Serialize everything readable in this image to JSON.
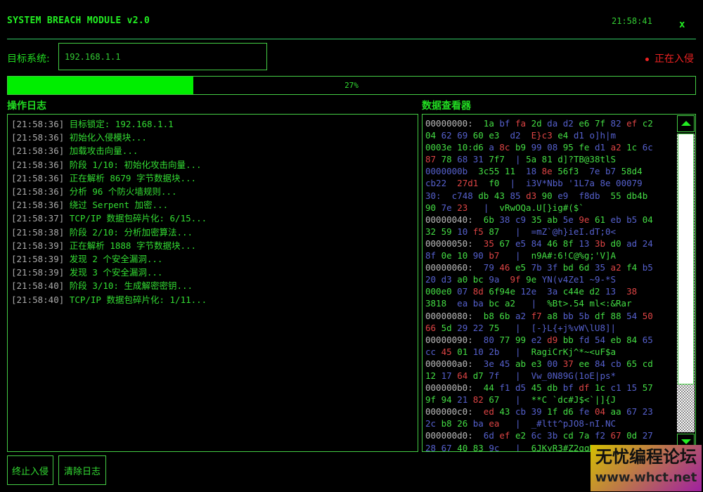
{
  "header": {
    "title": "SYSTEM BREACH MODULE v2.0",
    "clock": "21:58:41",
    "close_label": "x"
  },
  "target": {
    "label": "目标系统:",
    "value": "192.168.1.1"
  },
  "status": {
    "text": "正在入侵",
    "color": "#ee2222"
  },
  "progress": {
    "percent": 27,
    "label": "27%"
  },
  "log": {
    "title": "操作日志",
    "entries": [
      {
        "time": "[21:58:36]",
        "message": "目标锁定: 192.168.1.1"
      },
      {
        "time": "[21:58:36]",
        "message": "初始化入侵模块..."
      },
      {
        "time": "[21:58:36]",
        "message": "加载攻击向量..."
      },
      {
        "time": "[21:58:36]",
        "message": "阶段 1/10: 初始化攻击向量..."
      },
      {
        "time": "[21:58:36]",
        "message": "正在解析 8679 字节数据块..."
      },
      {
        "time": "[21:58:36]",
        "message": "分析 96 个防火墙规则..."
      },
      {
        "time": "[21:58:36]",
        "message": "绕过 Serpent 加密..."
      },
      {
        "time": "[21:58:37]",
        "message": "TCP/IP 数据包碎片化: 6/15..."
      },
      {
        "time": "[21:58:38]",
        "message": "阶段 2/10: 分析加密算法..."
      },
      {
        "time": "[21:58:39]",
        "message": "正在解析 1888 字节数据块..."
      },
      {
        "time": "[21:58:39]",
        "message": "发现 2 个安全漏洞..."
      },
      {
        "time": "[21:58:39]",
        "message": "发现 3 个安全漏洞..."
      },
      {
        "time": "[21:58:40]",
        "message": "阶段 3/10: 生成解密密钥..."
      },
      {
        "time": "[21:58:40]",
        "message": "TCP/IP 数据包碎片化: 1/11..."
      }
    ]
  },
  "hex_viewer": {
    "title": "数据查看器",
    "lines": [
      "00000000:  1a bf fa 2d da d2 e6 7f 82 ef c2",
      "04 62 69 60 e3  d2  E}c3 e4 d1 o]h|m",
      "0003e 10:d6 a 8c b9 99 08 95 fe d1 a2 1c 6c",
      "87 78 68 31 7f7  | 5a 81 d]?TB@38tlS",
      "0000000b  3c55 11  18 8e 56f3  7e b7 58d4",
      "cb22  27d1  f0  |  i3V*Nbb '1L7a 8e 00079",
      "30:  c748 db 43 85 d3 90 e9  f8db  55 db4b",
      "90 7e 23   |  vRwOQa.U[}ig#($`",
      "00000040:  6b 38 c9 35 ab 5e 9e 61 eb b5 04",
      "32 59 10 f5 87   |  =mZ`@h}ieI.dT;0<",
      "00000050:  35 67 e5 84 46 8f 13 3b d0 ad 24",
      "8f 0e 10 90 b7   |  n9A#:6!C@%g;'V]A",
      "00000060:  79 46 e5 7b 3f bd 6d 35 a2 f4 b5",
      "20 d3 a0 bc 9a  9f 9e YN(v4Ze1 ~9-*S",
      "000e0 07 8d 6f94e 12e  3a c44e d2 13  38",
      "3818  ea ba bc a2   |  %Bt>.54 ml<:&Rar",
      "00000080:  b8 6b a2 f7 a8 bb 5b df 88 54 50",
      "66 5d 29 22 75   |  [-}L{+j%vW\\lU8]|",
      "00000090:  80 77 99 e2 d9 bb fd 54 eb 84 65",
      "cc 45 01 10 2b   |  RagiCrKj^*~<uF$a",
      "000000a0:  3e 45 ab e3 00 37 ee 84 cb 65 cd",
      "12 17 64 d7 7f   |  Vw_0N89G(1oE|ps*",
      "000000b0:  44 f1 d5 45 db bf df 1c c1 15 57",
      "9f 94 21 82 67   |  **C `dc#J$<`|]{J",
      "000000c0:  ed 43 cb 39 1f d6 fe 04 aa 67 23",
      "2c b8 26 ba ea   |  _#ltt^pJO8-nI.NC",
      "000000d0:  6d ef e2 6c 3b cd 7a f2 67 0d 27",
      "28 67 40 83 9c   |  6JKyR3#Z2gqDN8vW"
    ]
  },
  "buttons": {
    "stop": "终止入侵",
    "clear": "清除日志"
  },
  "watermark": {
    "line1": "无忧编程论坛",
    "line2": "www.whct.net"
  },
  "colors": {
    "accent": "#22ee22",
    "border": "#44cc44",
    "alert": "#ee2222",
    "background": "#000000"
  }
}
